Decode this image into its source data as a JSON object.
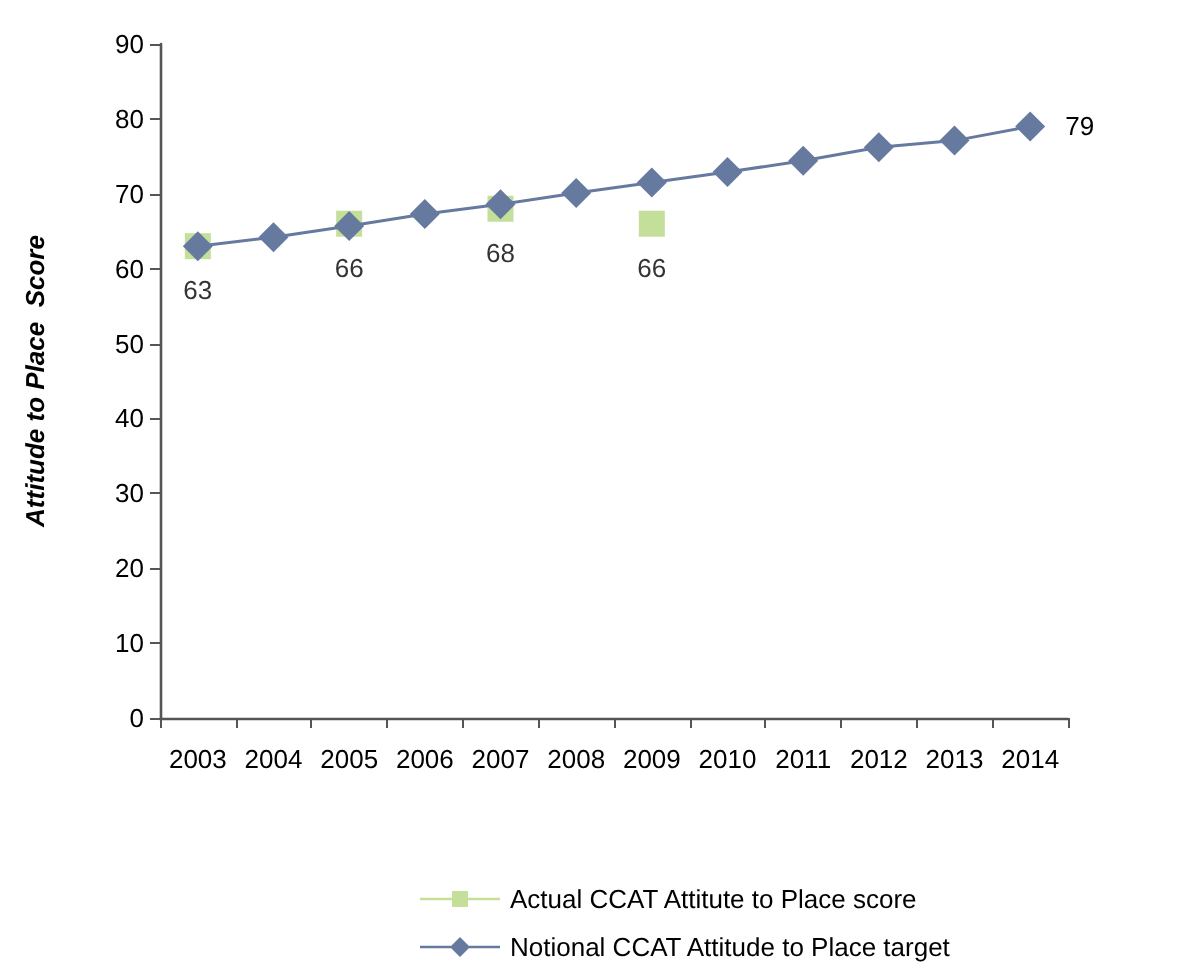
{
  "chart_data": {
    "type": "line",
    "ylabel": "Attitude to Place  Score",
    "categories": [
      "2003",
      "2004",
      "2005",
      "2006",
      "2007",
      "2008",
      "2009",
      "2010",
      "2011",
      "2012",
      "2013",
      "2014"
    ],
    "series": [
      {
        "name": "Actual CCAT Attitute to Place score",
        "type": "scatter",
        "color": "#b5d77f",
        "marker": "square",
        "values": [
          63,
          null,
          66,
          null,
          68,
          null,
          66,
          null,
          null,
          null,
          null,
          null
        ],
        "value_labels": [
          "63",
          null,
          "66",
          null,
          "68",
          null,
          "66",
          null,
          null,
          null,
          null,
          null
        ]
      },
      {
        "name": "Notional CCAT Attitude to Place target",
        "color": "#667aa0",
        "marker": "diamond",
        "values": [
          63,
          64.2,
          65.7,
          67.3,
          68.6,
          70.1,
          71.5,
          72.9,
          74.4,
          76.2,
          77.1,
          79
        ],
        "value_labels": [
          null,
          null,
          null,
          null,
          null,
          null,
          null,
          null,
          null,
          null,
          null,
          "79"
        ]
      }
    ],
    "ylim": [
      0,
      90
    ],
    "yticks": [
      0,
      10,
      20,
      30,
      40,
      50,
      60,
      70,
      80,
      90
    ],
    "grid": false,
    "legend": "bottom"
  }
}
